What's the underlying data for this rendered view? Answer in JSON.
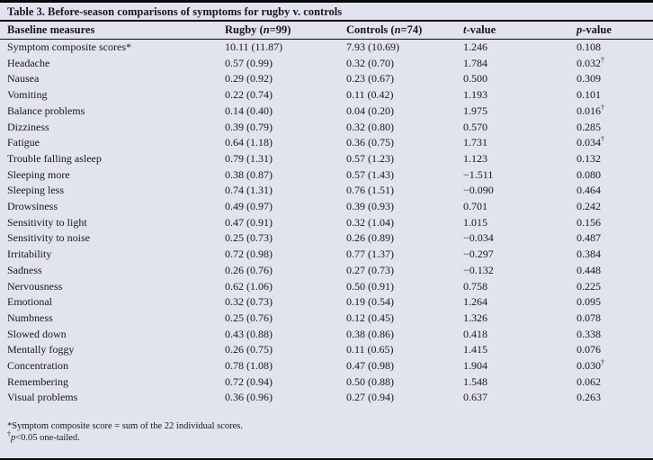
{
  "colors": {
    "background": "#e1e4ef",
    "rule": "#0a0a0a",
    "text": "#17171c"
  },
  "title": "Table 3. Before-season comparisons of symptoms for rugby v. controls",
  "table": {
    "columns": [
      {
        "prefix": "Baseline measures",
        "var": "",
        "suffix": ""
      },
      {
        "prefix": "Rugby (",
        "var": "n",
        "suffix": "=99)"
      },
      {
        "prefix": "Controls (",
        "var": "n",
        "suffix": "=74)"
      },
      {
        "prefix": "",
        "var": "t",
        "suffix": "-value"
      },
      {
        "prefix": "",
        "var": "p",
        "suffix": "-value"
      }
    ],
    "rows": [
      {
        "measure": "Symptom composite scores*",
        "rugby": "10.11 (11.87)",
        "controls": "7.93 (10.69)",
        "t": "1.246",
        "p": "0.108",
        "dagger": false
      },
      {
        "measure": "Headache",
        "rugby": "0.57 (0.99)",
        "controls": "0.32 (0.70)",
        "t": "1.784",
        "p": "0.032",
        "dagger": true
      },
      {
        "measure": "Nausea",
        "rugby": "0.29 (0.92)",
        "controls": "0.23 (0.67)",
        "t": "0.500",
        "p": "0.309",
        "dagger": false
      },
      {
        "measure": "Vomiting",
        "rugby": "0.22 (0.74)",
        "controls": "0.11 (0.42)",
        "t": "1.193",
        "p": "0.101",
        "dagger": false
      },
      {
        "measure": "Balance problems",
        "rugby": "0.14 (0.40)",
        "controls": "0.04 (0.20)",
        "t": "1.975",
        "p": "0.016",
        "dagger": true
      },
      {
        "measure": "Dizziness",
        "rugby": "0.39 (0.79)",
        "controls": "0.32 (0.80)",
        "t": "0.570",
        "p": "0.285",
        "dagger": false
      },
      {
        "measure": "Fatigue",
        "rugby": "0.64 (1.18)",
        "controls": "0.36 (0.75)",
        "t": "1.731",
        "p": "0.034",
        "dagger": true
      },
      {
        "measure": "Trouble falling asleep",
        "rugby": "0.79 (1.31)",
        "controls": "0.57 (1.23)",
        "t": "1.123",
        "p": "0.132",
        "dagger": false
      },
      {
        "measure": "Sleeping more",
        "rugby": "0.38 (0.87)",
        "controls": "0.57 (1.43)",
        "t": "−1.511",
        "p": "0.080",
        "dagger": false
      },
      {
        "measure": "Sleeping less",
        "rugby": "0.74 (1.31)",
        "controls": "0.76 (1.51)",
        "t": "−0.090",
        "p": "0.464",
        "dagger": false
      },
      {
        "measure": "Drowsiness",
        "rugby": "0.49 (0.97)",
        "controls": "0.39 (0.93)",
        "t": "0.701",
        "p": "0.242",
        "dagger": false
      },
      {
        "measure": "Sensitivity to light",
        "rugby": "0.47 (0.91)",
        "controls": "0.32 (1.04)",
        "t": "1.015",
        "p": "0.156",
        "dagger": false
      },
      {
        "measure": "Sensitivity to noise",
        "rugby": "0.25 (0.73)",
        "controls": "0.26 (0.89)",
        "t": "−0.034",
        "p": "0.487",
        "dagger": false
      },
      {
        "measure": "Irritability",
        "rugby": "0.72 (0.98)",
        "controls": "0.77 (1.37)",
        "t": "−0.297",
        "p": "0.384",
        "dagger": false
      },
      {
        "measure": "Sadness",
        "rugby": "0.26 (0.76)",
        "controls": "0.27 (0.73)",
        "t": "−0.132",
        "p": "0.448",
        "dagger": false
      },
      {
        "measure": "Nervousness",
        "rugby": "0.62 (1.06)",
        "controls": "0.50 (0.91)",
        "t": "0.758",
        "p": "0.225",
        "dagger": false
      },
      {
        "measure": "Emotional",
        "rugby": "0.32 (0.73)",
        "controls": "0.19 (0.54)",
        "t": "1.264",
        "p": "0.095",
        "dagger": false
      },
      {
        "measure": "Numbness",
        "rugby": "0.25 (0.76)",
        "controls": "0.12 (0.45)",
        "t": "1.326",
        "p": "0.078",
        "dagger": false
      },
      {
        "measure": "Slowed down",
        "rugby": "0.43 (0.88)",
        "controls": "0.38 (0.86)",
        "t": "0.418",
        "p": "0.338",
        "dagger": false
      },
      {
        "measure": "Mentally foggy",
        "rugby": "0.26 (0.75)",
        "controls": "0.11 (0.65)",
        "t": "1.415",
        "p": "0.076",
        "dagger": false
      },
      {
        "measure": "Concentration",
        "rugby": "0.78 (1.08)",
        "controls": "0.47 (0.98)",
        "t": "1.904",
        "p": "0.030",
        "dagger": true
      },
      {
        "measure": "Remembering",
        "rugby": "0.72 (0.94)",
        "controls": "0.50 (0.88)",
        "t": "1.548",
        "p": "0.062",
        "dagger": false
      },
      {
        "measure": "Visual problems",
        "rugby": "0.36 (0.96)",
        "controls": "0.27 (0.94)",
        "t": "0.637",
        "p": "0.263",
        "dagger": false
      }
    ]
  },
  "footnotes": [
    {
      "marker": "*",
      "marker_sup": false,
      "italic_lead": "",
      "text": "Symptom composite score = sum of the 22 individual scores."
    },
    {
      "marker": "†",
      "marker_sup": true,
      "italic_lead": "p",
      "text": "<0.05 one-tailed."
    }
  ]
}
